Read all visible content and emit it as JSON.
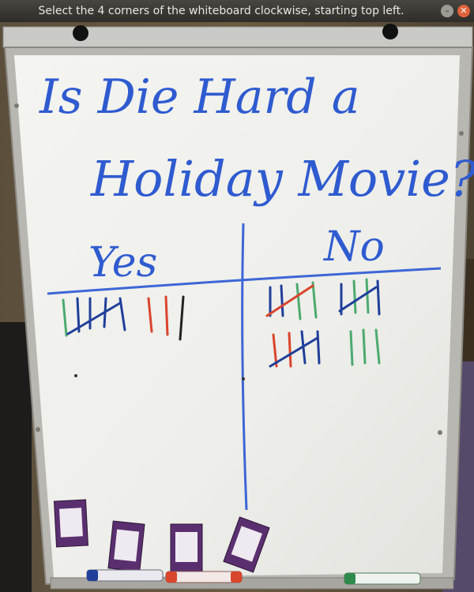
{
  "window": {
    "title": "Select the 4 corners of the whiteboard clockwise, starting top left.",
    "minimize_glyph": "–",
    "close_glyph": "✕"
  },
  "board": {
    "heading_line1": "Is Die Hard a",
    "heading_line2": "Holiday Movie?",
    "column_yes": "Yes",
    "column_no": "No"
  },
  "colors": {
    "marker_blue": "#2f5bd0",
    "tally_green": "#4caa70",
    "tally_red": "#d9452d",
    "tally_black": "#222222",
    "tally_blue": "#1f3f9a",
    "card_purple": "#5a2f6f"
  }
}
